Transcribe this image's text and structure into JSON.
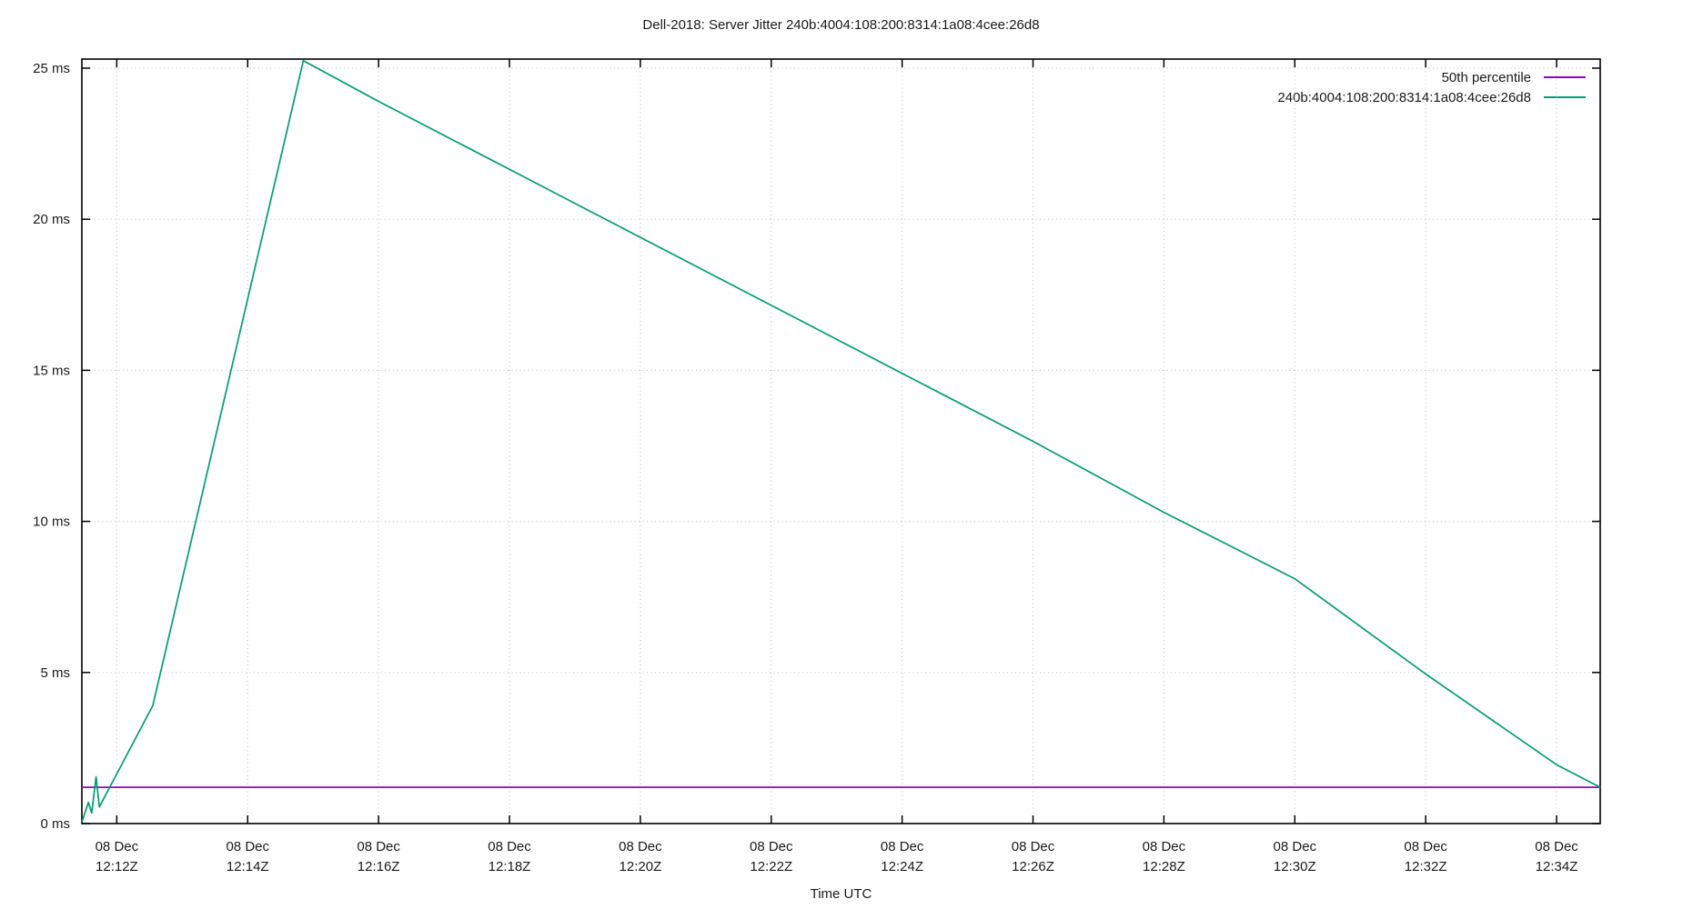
{
  "page": {
    "background": "#ffffff"
  },
  "colors": {
    "grid": "#c6c6c6",
    "axis": "#000000",
    "text": "#1a1a1a",
    "percentile_line": "#9400d3",
    "jitter_line": "#009e73"
  },
  "chart_data": {
    "type": "line",
    "title": "Dell-2018: Server Jitter 240b:4004:108:200:8314:1a08:4cee:26d8",
    "xlabel": "Time UTC",
    "ylabel": "",
    "grid": true,
    "legend_position": "top-right",
    "x_unit": "seconds after 08 Dec 12:00 UTC",
    "y_unit": "ms",
    "xlim": [
      688,
      2080
    ],
    "ylim": [
      0,
      25.3
    ],
    "y_ticks": [
      {
        "v": 0,
        "label": "0 ms"
      },
      {
        "v": 5,
        "label": "5 ms"
      },
      {
        "v": 10,
        "label": "10 ms"
      },
      {
        "v": 15,
        "label": "15 ms"
      },
      {
        "v": 20,
        "label": "20 ms"
      },
      {
        "v": 25,
        "label": "25 ms"
      }
    ],
    "x_ticks": [
      {
        "t": 720,
        "line1": "08 Dec",
        "line2": "12:12Z"
      },
      {
        "t": 840,
        "line1": "08 Dec",
        "line2": "12:14Z"
      },
      {
        "t": 960,
        "line1": "08 Dec",
        "line2": "12:16Z"
      },
      {
        "t": 1080,
        "line1": "08 Dec",
        "line2": "12:18Z"
      },
      {
        "t": 1200,
        "line1": "08 Dec",
        "line2": "12:20Z"
      },
      {
        "t": 1320,
        "line1": "08 Dec",
        "line2": "12:22Z"
      },
      {
        "t": 1440,
        "line1": "08 Dec",
        "line2": "12:24Z"
      },
      {
        "t": 1560,
        "line1": "08 Dec",
        "line2": "12:26Z"
      },
      {
        "t": 1680,
        "line1": "08 Dec",
        "line2": "12:28Z"
      },
      {
        "t": 1800,
        "line1": "08 Dec",
        "line2": "12:30Z"
      },
      {
        "t": 1920,
        "line1": "08 Dec",
        "line2": "12:32Z"
      },
      {
        "t": 2040,
        "line1": "08 Dec",
        "line2": "12:34Z"
      }
    ],
    "series": [
      {
        "name": "50th percentile",
        "color": "#9400d3",
        "points": [
          [
            688,
            1.2
          ],
          [
            2080,
            1.2
          ]
        ]
      },
      {
        "name": "240b:4004:108:200:8314:1a08:4cee:26d8",
        "color": "#009e73",
        "points": [
          [
            688,
            0.05
          ],
          [
            694,
            0.7
          ],
          [
            697,
            0.35
          ],
          [
            701,
            1.55
          ],
          [
            704,
            0.55
          ],
          [
            753,
            3.9
          ],
          [
            891,
            25.25
          ],
          [
            960,
            23.9
          ],
          [
            1080,
            21.65
          ],
          [
            1200,
            19.4
          ],
          [
            1320,
            17.15
          ],
          [
            1440,
            14.9
          ],
          [
            1560,
            12.65
          ],
          [
            1680,
            10.3
          ],
          [
            1800,
            8.1
          ],
          [
            1920,
            4.95
          ],
          [
            2040,
            1.95
          ],
          [
            2080,
            1.2
          ]
        ]
      }
    ]
  }
}
